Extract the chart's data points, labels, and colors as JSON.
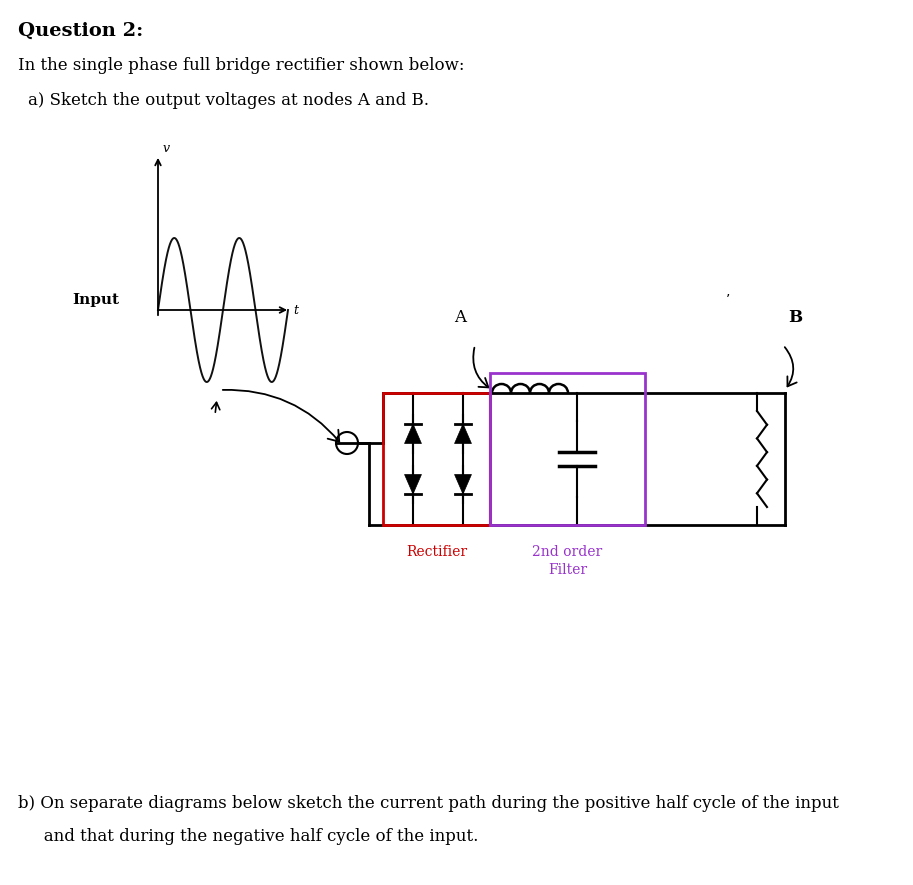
{
  "title": "Question 2:",
  "line1": "In the single phase full bridge rectifier shown below:",
  "line2": "a) Sketch the output voltages at nodes A and B.",
  "line3": "b) On separate diagrams below sketch the current path during the positive half cycle of the input",
  "line4": "   and that during the negative half cycle of the input.",
  "input_label": "Input",
  "v_label": "v",
  "t_label": "t",
  "node_A": "A",
  "node_B": "B",
  "rectifier_label": "Rectifier",
  "filter_label1": "2nd order",
  "filter_label2": "Filter",
  "bg_color": "#ffffff",
  "text_color": "#000000",
  "red_color": "#cc0000",
  "purple_color": "#9933cc",
  "circuit_color": "#000000",
  "fig_w": 9.13,
  "fig_h": 8.85,
  "dpi": 100
}
